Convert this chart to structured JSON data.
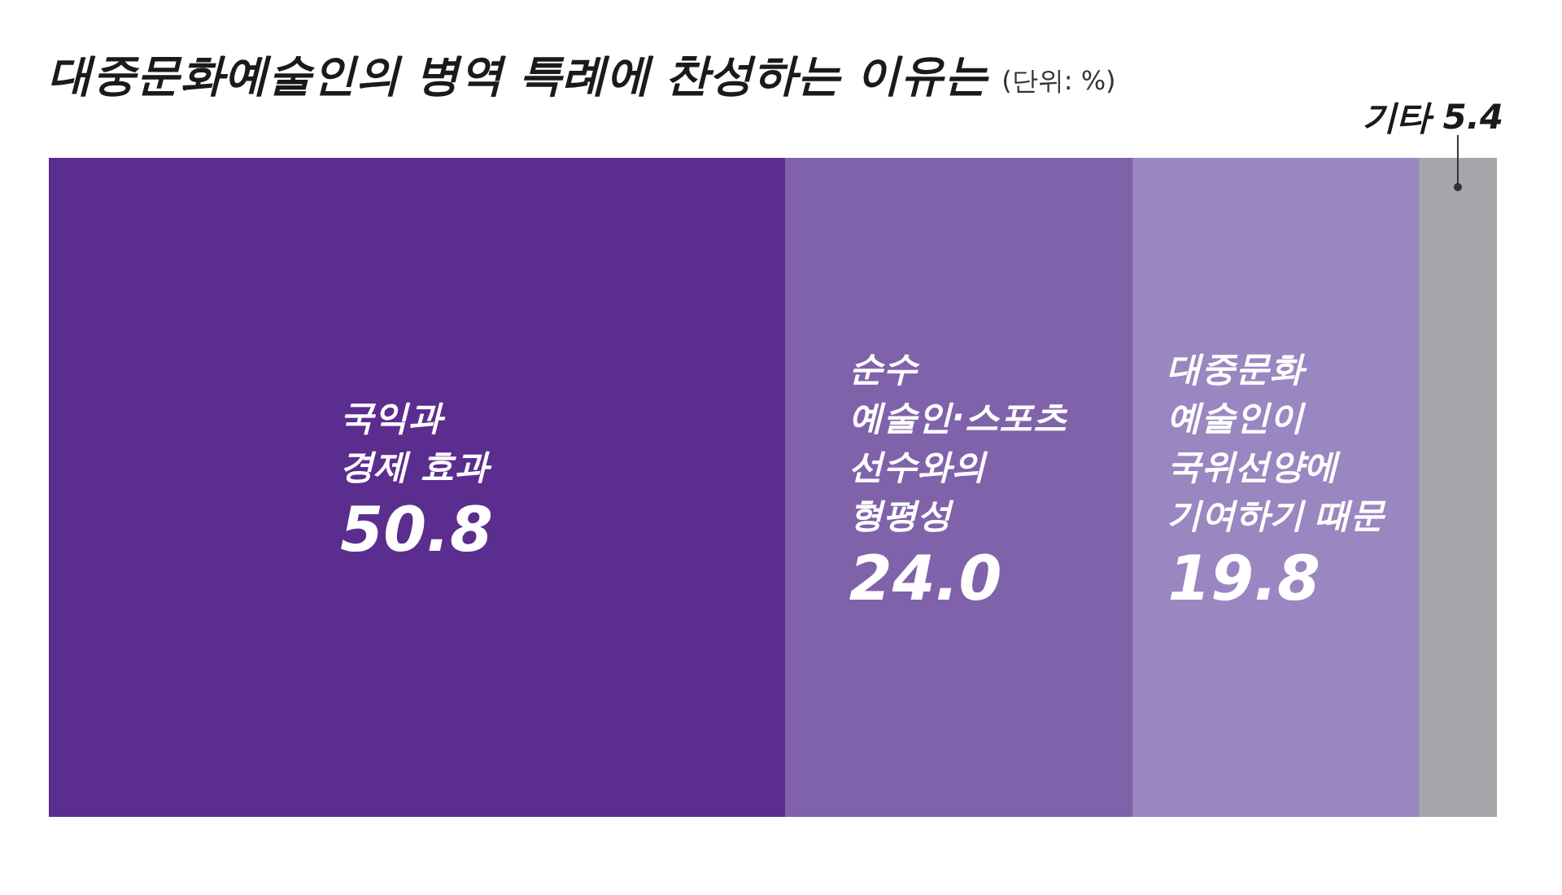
{
  "chart_data": {
    "type": "bar",
    "title": "대중문화예술인의 병역 특례에 찬성하는 이유는",
    "subtitle": "(단위: %)",
    "orientation": "horizontal",
    "stacked": true,
    "legend": false,
    "tick_labels": false,
    "categories": [
      null
    ],
    "series": [
      {
        "name": "국익과\n경제 효과",
        "color": "#5b2d8e",
        "values": [
          50.8
        ],
        "value_labels": [
          "50.8"
        ]
      },
      {
        "name": "순수\n예술인·스포츠\n선수와의\n형평성",
        "color": "#8062ab",
        "values": [
          24.0
        ],
        "value_labels": [
          "24.0"
        ]
      },
      {
        "name": "대중문화\n예술인이\n국위선양에\n기여하기 때문",
        "color": "#9a86c0",
        "values": [
          19.8
        ],
        "value_labels": [
          "19.8"
        ]
      },
      {
        "name": "기타",
        "color": "#a6a6aa",
        "values": [
          5.4
        ],
        "value_labels": [
          "5.4"
        ]
      }
    ]
  }
}
